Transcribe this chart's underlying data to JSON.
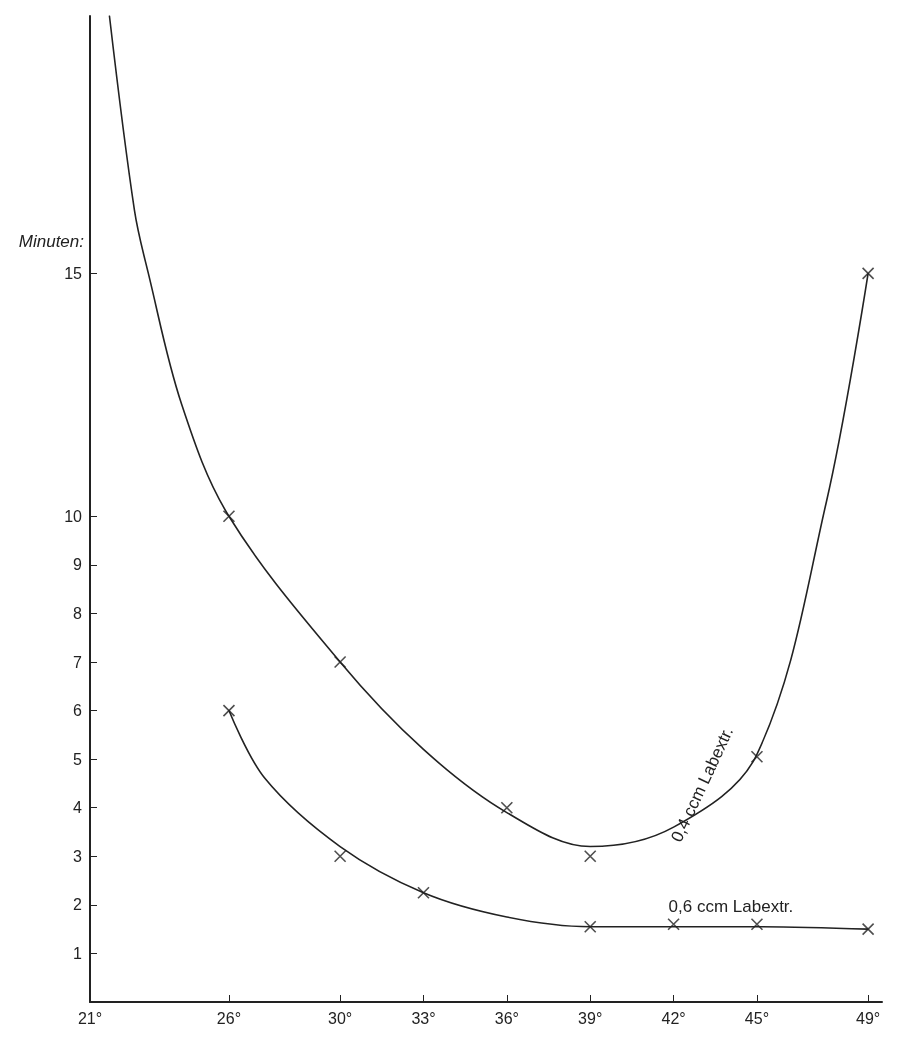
{
  "chart_data": {
    "type": "scatter",
    "ylabel": "Minuten:",
    "xlim": [
      21,
      49.5
    ],
    "ylim": [
      0,
      20.3
    ],
    "xticks": [
      {
        "value": 21,
        "label": "21°"
      },
      {
        "value": 26,
        "label": "26°"
      },
      {
        "value": 30,
        "label": "30°"
      },
      {
        "value": 33,
        "label": "33°"
      },
      {
        "value": 36,
        "label": "36°"
      },
      {
        "value": 39,
        "label": "39°"
      },
      {
        "value": 42,
        "label": "42°"
      },
      {
        "value": 45,
        "label": "45°"
      },
      {
        "value": 49,
        "label": "49°"
      }
    ],
    "yticks": [
      1,
      2,
      3,
      4,
      5,
      6,
      7,
      8,
      9,
      10,
      15
    ],
    "marker": "cross",
    "grid": false,
    "legend": false,
    "series": [
      {
        "color": "#222222",
        "x": [
          26,
          30,
          36,
          39,
          45,
          49
        ],
        "values": [
          10,
          7,
          4,
          3,
          5.05,
          15
        ]
      },
      {
        "color": "#222222",
        "x": [
          26,
          30,
          33,
          39,
          42,
          45,
          49
        ],
        "values": [
          6,
          3,
          2.25,
          1.55,
          1.6,
          1.6,
          1.5
        ]
      },
      {
        "type": "line",
        "name": "0,4 ccm Labextr.",
        "color": "#222222",
        "marker": "none",
        "x": [
          21.7,
          22.6,
          23.1,
          24.3,
          26,
          30,
          33,
          36,
          39,
          42,
          45,
          47.5,
          49
        ],
        "values": [
          20.3,
          16.3,
          15,
          12.3,
          10,
          7,
          5.2,
          3.9,
          3.2,
          3.6,
          5.1,
          10.3,
          15
        ]
      },
      {
        "type": "line",
        "name": "0,6 ccm Labextr.",
        "color": "#222222",
        "marker": "none",
        "x": [
          26,
          27.3,
          30,
          33,
          36,
          39,
          42,
          45,
          49
        ],
        "values": [
          6,
          4.6,
          3.2,
          2.25,
          1.75,
          1.55,
          1.55,
          1.55,
          1.5
        ]
      }
    ]
  }
}
